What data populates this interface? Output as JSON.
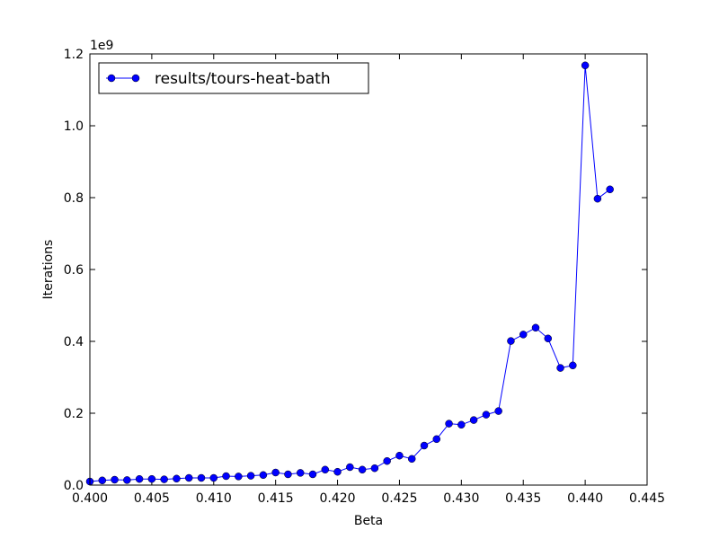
{
  "chart_data": {
    "type": "line",
    "title": "",
    "xlabel": "Beta",
    "ylabel": "Iterations",
    "offset_text": "1e9",
    "xlim": [
      0.4,
      0.445
    ],
    "ylim": [
      0.0,
      1.2
    ],
    "xticks": [
      0.4,
      0.405,
      0.41,
      0.415,
      0.42,
      0.425,
      0.43,
      0.435,
      0.44,
      0.445
    ],
    "xtick_labels": [
      "0.400",
      "0.405",
      "0.410",
      "0.415",
      "0.420",
      "0.425",
      "0.430",
      "0.435",
      "0.440",
      "0.445"
    ],
    "yticks": [
      0.0,
      0.2,
      0.4,
      0.6,
      0.8,
      1.0,
      1.2
    ],
    "ytick_labels": [
      "0.0",
      "0.2",
      "0.4",
      "0.6",
      "0.8",
      "1.0",
      "1.2"
    ],
    "grid": false,
    "legend_position": "top-left",
    "series": [
      {
        "name": "results/tours-heat-bath",
        "color": "#0000ff",
        "marker": "circle",
        "x": [
          0.4,
          0.401,
          0.402,
          0.403,
          0.404,
          0.405,
          0.406,
          0.407,
          0.408,
          0.409,
          0.41,
          0.411,
          0.412,
          0.413,
          0.414,
          0.415,
          0.416,
          0.417,
          0.418,
          0.419,
          0.42,
          0.421,
          0.422,
          0.423,
          0.424,
          0.425,
          0.426,
          0.427,
          0.428,
          0.429,
          0.43,
          0.431,
          0.432,
          0.433,
          0.434,
          0.435,
          0.436,
          0.437,
          0.438,
          0.439,
          0.44,
          0.441,
          0.442
        ],
        "y": [
          0.01,
          0.013,
          0.015,
          0.014,
          0.017,
          0.017,
          0.016,
          0.018,
          0.02,
          0.02,
          0.02,
          0.025,
          0.024,
          0.026,
          0.028,
          0.035,
          0.03,
          0.034,
          0.03,
          0.043,
          0.037,
          0.05,
          0.043,
          0.047,
          0.067,
          0.082,
          0.073,
          0.11,
          0.128,
          0.171,
          0.168,
          0.181,
          0.196,
          0.206,
          0.401,
          0.419,
          0.438,
          0.408,
          0.326,
          0.333,
          1.168,
          0.797,
          0.823
        ]
      }
    ]
  }
}
